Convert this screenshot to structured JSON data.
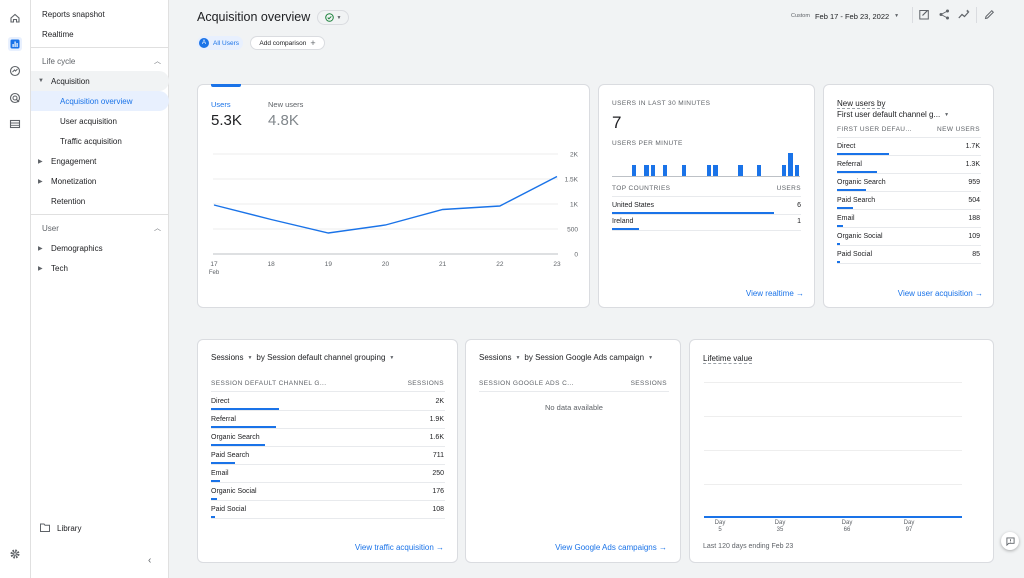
{
  "colors": {
    "accent": "#1a73e8",
    "success": "#188038",
    "text": "#202124",
    "muted": "#5f6368"
  },
  "rail": {
    "icons": [
      "home-icon",
      "reports-icon",
      "explore-icon",
      "advertising-icon",
      "configure-icon",
      "settings-icon"
    ]
  },
  "sidebar": {
    "top_items": [
      "Reports snapshot",
      "Realtime"
    ],
    "lifecycle_label": "Life cycle",
    "acquisition_label": "Acquisition",
    "acquisition_children": [
      "Acquisition overview",
      "User acquisition",
      "Traffic acquisition"
    ],
    "lifecycle_items": [
      "Engagement",
      "Monetization",
      "Retention"
    ],
    "user_label": "User",
    "user_items": [
      "Demographics",
      "Tech"
    ],
    "library_label": "Library"
  },
  "header": {
    "title": "Acquisition overview",
    "chip_initial": "A",
    "chip_label": "All Users",
    "add_comparison": "Add comparison",
    "date_prefix": "Custom",
    "date_range": "Feb 17 - Feb 23, 2022"
  },
  "users_card": {
    "tab1_label": "Users",
    "tab1_value": "5.3K",
    "tab2_label": "New users",
    "tab2_value": "4.8K",
    "y_ticks": [
      "2K",
      "1.5K",
      "1K",
      "500",
      "0"
    ],
    "x_ticks": [
      "17",
      "18",
      "19",
      "20",
      "21",
      "22",
      "23"
    ],
    "x_sub": "Feb"
  },
  "chart_data": {
    "type": "line",
    "x": [
      "17",
      "18",
      "19",
      "20",
      "21",
      "22",
      "23"
    ],
    "series": [
      {
        "values": [
          980,
          690,
          420,
          580,
          890,
          960,
          1550
        ]
      }
    ],
    "ylim": [
      0,
      2000
    ],
    "ylabel": "",
    "xlabel": ""
  },
  "realtime": {
    "heading": "USERS IN LAST 30 MINUTES",
    "value": "7",
    "per_minute": "USERS PER MINUTE",
    "bars": [
      0,
      0,
      0,
      1,
      0,
      1,
      1,
      0,
      1,
      0,
      0,
      1,
      0,
      0,
      0,
      1,
      1,
      0,
      0,
      0,
      1,
      0,
      0,
      1,
      0,
      0,
      0,
      1,
      2,
      1
    ],
    "col1": "TOP COUNTRIES",
    "col2": "USERS",
    "rows": [
      {
        "label": "United States",
        "value": "6",
        "frac": 0.857
      },
      {
        "label": "Ireland",
        "value": "1",
        "frac": 0.143
      }
    ],
    "link": "View realtime"
  },
  "new_users": {
    "title": "New users by",
    "dimension": "First user default channel g...",
    "col1": "FIRST USER DEFAU...",
    "col2": "NEW USERS",
    "rows": [
      {
        "label": "Direct",
        "value": "1.7K",
        "frac": 1
      },
      {
        "label": "Referral",
        "value": "1.3K",
        "frac": 0.76
      },
      {
        "label": "Organic Search",
        "value": "959",
        "frac": 0.56
      },
      {
        "label": "Paid Search",
        "value": "504",
        "frac": 0.3
      },
      {
        "label": "Email",
        "value": "188",
        "frac": 0.11
      },
      {
        "label": "Organic Social",
        "value": "109",
        "frac": 0.065
      },
      {
        "label": "Paid Social",
        "value": "85",
        "frac": 0.05
      }
    ],
    "link": "View user acquisition"
  },
  "sessions_channel": {
    "metric": "Sessions",
    "dimension": "by Session default channel grouping",
    "col1": "SESSION DEFAULT CHANNEL G...",
    "col2": "SESSIONS",
    "rows": [
      {
        "label": "Direct",
        "value": "2K",
        "frac": 1
      },
      {
        "label": "Referral",
        "value": "1.9K",
        "frac": 0.95
      },
      {
        "label": "Organic Search",
        "value": "1.6K",
        "frac": 0.8
      },
      {
        "label": "Paid Search",
        "value": "711",
        "frac": 0.36
      },
      {
        "label": "Email",
        "value": "250",
        "frac": 0.13
      },
      {
        "label": "Organic Social",
        "value": "176",
        "frac": 0.09
      },
      {
        "label": "Paid Social",
        "value": "108",
        "frac": 0.055
      }
    ],
    "link": "View traffic acquisition"
  },
  "sessions_ads": {
    "metric": "Sessions",
    "dimension": "by Session Google Ads campaign",
    "col1": "SESSION GOOGLE ADS C...",
    "col2": "SESSIONS",
    "empty": "No data available",
    "link": "View Google Ads campaigns"
  },
  "lifetime": {
    "title": "Lifetime value",
    "x_day": "Day",
    "x_ticks": [
      "5",
      "35",
      "66",
      "97"
    ],
    "footer": "Last 120 days ending Feb 23"
  }
}
